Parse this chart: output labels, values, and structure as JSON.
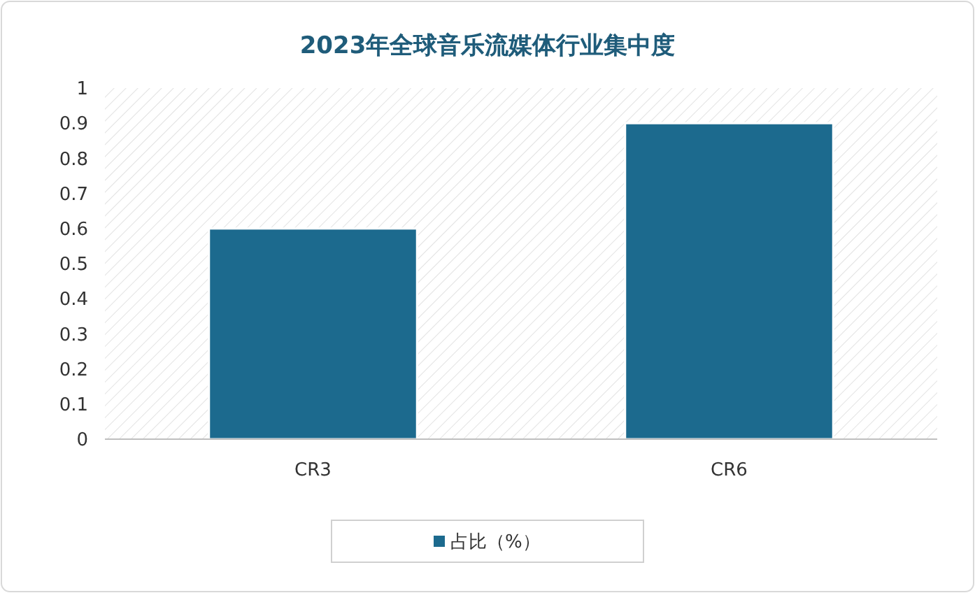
{
  "chart_data": {
    "type": "bar",
    "title": "2023年全球音乐流媒体行业集中度",
    "categories": [
      "CR3",
      "CR6"
    ],
    "series": [
      {
        "name": "占比（%）",
        "color": "#1c6a8e",
        "values": [
          0.6,
          0.9
        ]
      }
    ],
    "ylim": [
      0,
      1
    ],
    "yticks": [
      0,
      0.1,
      0.2,
      0.3,
      0.4,
      0.5,
      0.6,
      0.7,
      0.8,
      0.9,
      1
    ],
    "legend": "bottom"
  }
}
